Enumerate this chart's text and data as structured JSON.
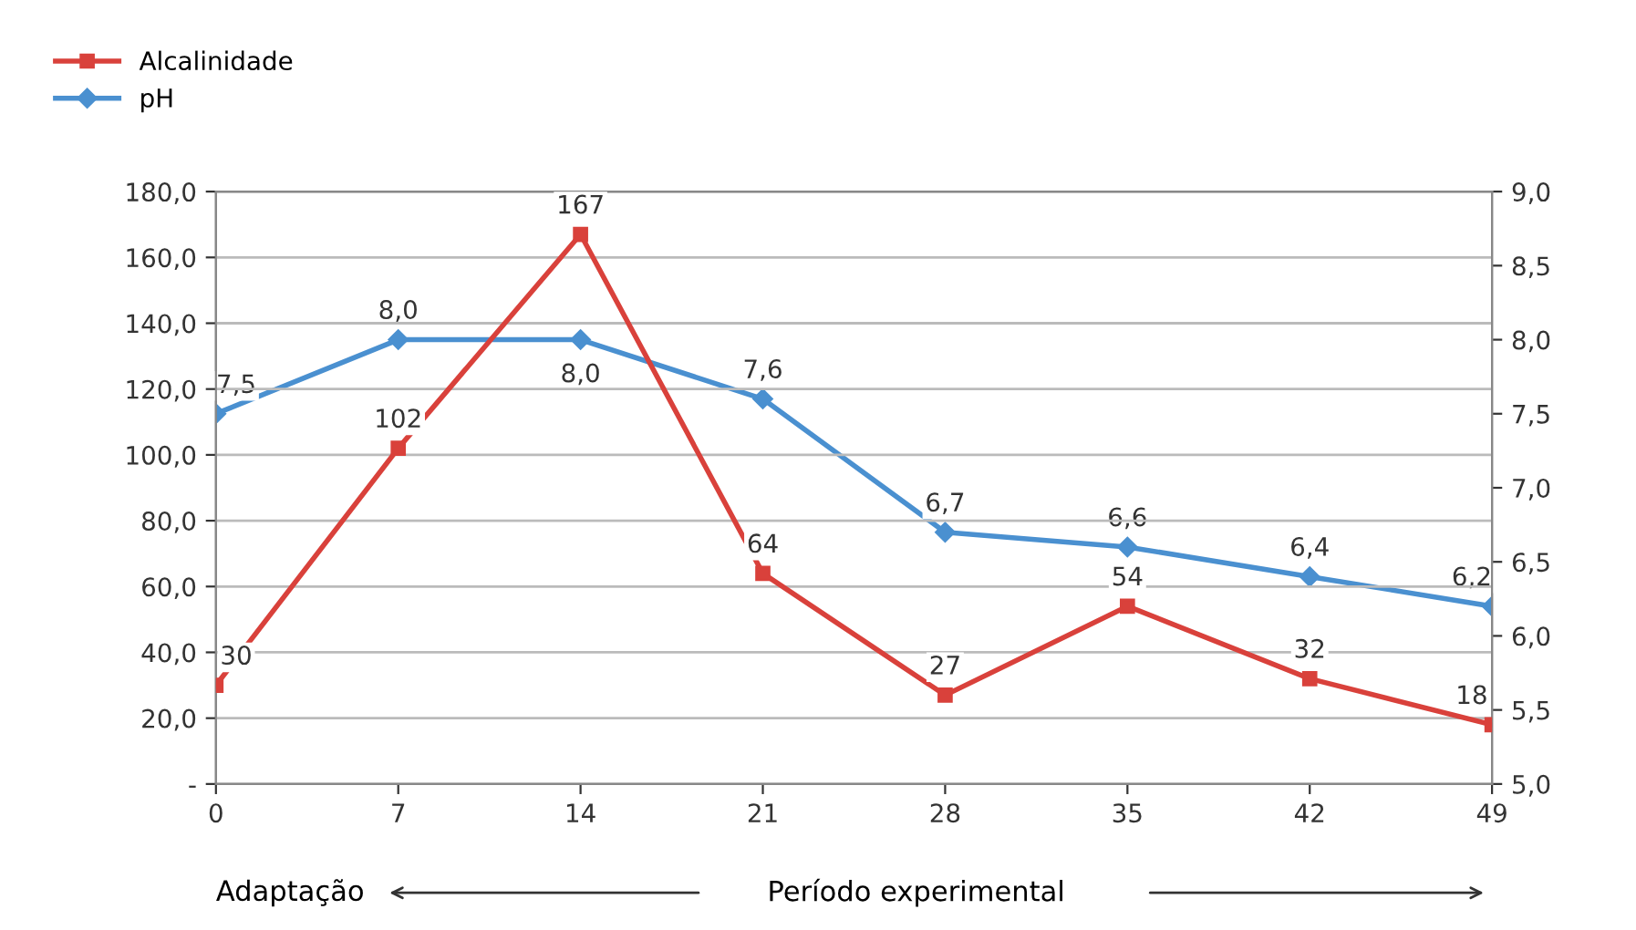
{
  "chart_data": {
    "type": "line",
    "categories": [
      "0",
      "7",
      "14",
      "21",
      "28",
      "35",
      "42",
      "49"
    ],
    "series": [
      {
        "name": "Alcalinidade",
        "color": "#d9413b",
        "marker": "square",
        "values": [
          30,
          102,
          167,
          64,
          27,
          54,
          32,
          18
        ],
        "value_labels": [
          "30",
          "102",
          "167",
          "64",
          "27",
          "54",
          "32",
          "18"
        ]
      },
      {
        "name": "pH",
        "color": "#4a90d0",
        "marker": "diamond",
        "axis": "y2",
        "values": [
          7.5,
          8.0,
          8.0,
          7.6,
          6.7,
          6.6,
          6.4,
          6.2
        ],
        "value_labels": [
          "7,5",
          "8,0",
          "8,0",
          "7,6",
          "6,7",
          "6,6",
          "6,4",
          "6,2"
        ]
      }
    ],
    "ylim": [
      0,
      180
    ],
    "yticks": [
      {
        "value": 0,
        "label": "-"
      },
      {
        "value": 20,
        "label": "20,0"
      },
      {
        "value": 40,
        "label": "40,0"
      },
      {
        "value": 60,
        "label": "60,0"
      },
      {
        "value": 80,
        "label": "80,0"
      },
      {
        "value": 100,
        "label": "100,0"
      },
      {
        "value": 120,
        "label": "120,0"
      },
      {
        "value": 140,
        "label": "140,0"
      },
      {
        "value": 160,
        "label": "160,0"
      },
      {
        "value": 180,
        "label": "180,0"
      }
    ],
    "y2lim": [
      5,
      9
    ],
    "y2ticks": [
      {
        "value": 5,
        "label": "5,0"
      },
      {
        "value": 5.5,
        "label": "5,5"
      },
      {
        "value": 6,
        "label": "6,0"
      },
      {
        "value": 6.5,
        "label": "6,5"
      },
      {
        "value": 7,
        "label": "7,0"
      },
      {
        "value": 7.5,
        "label": "7,5"
      },
      {
        "value": 8,
        "label": "8,0"
      },
      {
        "value": 8.5,
        "label": "8,5"
      },
      {
        "value": 9,
        "label": "9,0"
      }
    ],
    "grid": "y",
    "legend": "top left",
    "line_style": "solid",
    "annotations": [
      "Adaptação",
      "Período experimental"
    ]
  }
}
